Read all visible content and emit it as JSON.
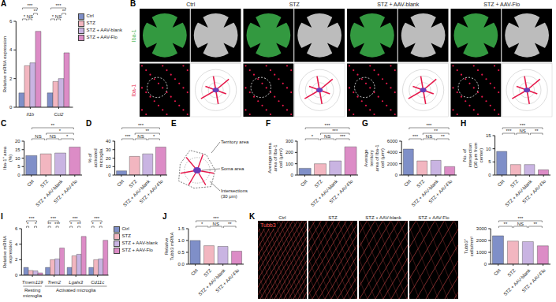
{
  "chart_data": [
    {
      "panel": "A",
      "type": "bar",
      "categories": [
        "Il1b",
        "Ccl2"
      ],
      "y_label": "Relative mRNA expression",
      "ylim": [
        0,
        6
      ],
      "yticks": [
        0,
        2,
        4,
        6
      ],
      "legend": "right",
      "series": [
        {
          "name": "Ctrl",
          "color": "#7f8fc8",
          "values": [
            1.0,
            1.0
          ]
        },
        {
          "name": "STZ",
          "color": "#f2b6c0",
          "values": [
            2.9,
            1.8
          ]
        },
        {
          "name": "STZ + AAV-blank",
          "color": "#c9b4e2",
          "values": [
            3.1,
            2.0
          ]
        },
        {
          "name": "STZ + AAV-Flo",
          "color": "#dc8cc6",
          "values": [
            5.3,
            3.8
          ]
        }
      ],
      "comparisons": [
        {
          "category": 0,
          "from": 0,
          "to": 1,
          "label": "*"
        },
        {
          "category": 0,
          "from": 1,
          "to": 2,
          "label": "NS"
        },
        {
          "category": 0,
          "from": 2,
          "to": 3,
          "label": "**"
        },
        {
          "category": 0,
          "from": 0,
          "to": 3,
          "label": "***"
        },
        {
          "category": 1,
          "from": 0,
          "to": 1,
          "label": "*"
        },
        {
          "category": 1,
          "from": 1,
          "to": 2,
          "label": "NS"
        },
        {
          "category": 1,
          "from": 2,
          "to": 3,
          "label": "**"
        },
        {
          "category": 1,
          "from": 0,
          "to": 3,
          "label": "***"
        }
      ]
    },
    {
      "panel": "C",
      "type": "bar",
      "categories": [
        "Ctrl",
        "STZ",
        "STZ + AAV-blank",
        "STZ + AAV-Flo"
      ],
      "values": [
        11.5,
        12.5,
        13.0,
        16.5
      ],
      "colors": [
        "#7f8fc8",
        "#f2b6c0",
        "#c9b4e2",
        "#dc8cc6"
      ],
      "y_label": "Iba-1⁺ area (%)",
      "ylim": [
        0,
        20
      ],
      "yticks": [
        0,
        5,
        10,
        15,
        20
      ],
      "comparisons": [
        {
          "from": 0,
          "to": 1,
          "label": "NS"
        },
        {
          "from": 1,
          "to": 2,
          "label": "NS"
        },
        {
          "from": 2,
          "to": 3,
          "label": "*"
        },
        {
          "from": 1,
          "to": 3,
          "label": "*"
        },
        {
          "from": 0,
          "to": 3,
          "label": "**"
        }
      ]
    },
    {
      "panel": "D",
      "type": "bar",
      "categories": [
        "Ctrl",
        "STZ",
        "STZ + AAV-blank",
        "STZ + AAV-Flo"
      ],
      "values": [
        5,
        22,
        25,
        33
      ],
      "colors": [
        "#7f8fc8",
        "#f2b6c0",
        "#c9b4e2",
        "#dc8cc6"
      ],
      "y_label": "% of activated microglia",
      "ylim": [
        0,
        40
      ],
      "yticks": [
        0,
        10,
        20,
        30,
        40
      ],
      "comparisons": [
        {
          "from": 0,
          "to": 1,
          "label": "***"
        },
        {
          "from": 1,
          "to": 2,
          "label": "NS"
        },
        {
          "from": 2,
          "to": 3,
          "label": "*"
        },
        {
          "from": 1,
          "to": 3,
          "label": "**"
        },
        {
          "from": 0,
          "to": 3,
          "label": "***"
        }
      ]
    },
    {
      "panel": "F",
      "type": "bar",
      "categories": [
        "Ctrl",
        "STZ",
        "STZ + AAV-blank",
        "STZ + AAV-Flo"
      ],
      "values": [
        60,
        100,
        125,
        250
      ],
      "colors": [
        "#7f8fc8",
        "#f2b6c0",
        "#c9b4e2",
        "#dc8cc6"
      ],
      "y_label": "Average soma area of Iba-1 cell (μm²)",
      "ylim": [
        0,
        300
      ],
      "yticks": [
        0,
        100,
        200,
        300
      ],
      "comparisons": [
        {
          "from": 0,
          "to": 1,
          "label": "*"
        },
        {
          "from": 1,
          "to": 2,
          "label": "NS"
        },
        {
          "from": 2,
          "to": 3,
          "label": "***"
        },
        {
          "from": 1,
          "to": 3,
          "label": "***"
        },
        {
          "from": 0,
          "to": 3,
          "label": "***"
        }
      ]
    },
    {
      "panel": "G",
      "type": "bar",
      "categories": [
        "Ctrl",
        "STZ",
        "STZ + AAV-blank",
        "STZ + AAV-Flo"
      ],
      "values": [
        4600,
        2500,
        2600,
        1500
      ],
      "colors": [
        "#7f8fc8",
        "#f2b6c0",
        "#c9b4e2",
        "#dc8cc6"
      ],
      "y_label": "Average territory area of Iba-1 cell (μm²)",
      "ylim": [
        0,
        6000
      ],
      "yticks": [
        0,
        2000,
        4000,
        6000
      ],
      "comparisons": [
        {
          "from": 0,
          "to": 1,
          "label": "***"
        },
        {
          "from": 1,
          "to": 2,
          "label": "NS"
        },
        {
          "from": 2,
          "to": 3,
          "label": "**"
        },
        {
          "from": 1,
          "to": 3,
          "label": "**"
        },
        {
          "from": 0,
          "to": 3,
          "label": "***"
        }
      ]
    },
    {
      "panel": "H",
      "type": "bar",
      "categories": [
        "Ctrl",
        "STZ",
        "STZ + AAV-blank",
        "STZ + AAV-Flo"
      ],
      "values": [
        9,
        4,
        4,
        2
      ],
      "colors": [
        "#7f8fc8",
        "#f2b6c0",
        "#c9b4e2",
        "#dc8cc6"
      ],
      "y_label": "No. of intersection (30 μm from center)",
      "ylim": [
        0,
        15
      ],
      "yticks": [
        0,
        5,
        10,
        15
      ],
      "comparisons": [
        {
          "from": 0,
          "to": 1,
          "label": "***"
        },
        {
          "from": 1,
          "to": 2,
          "label": "NS"
        },
        {
          "from": 2,
          "to": 3,
          "label": "**"
        },
        {
          "from": 0,
          "to": 3,
          "label": "***"
        }
      ]
    },
    {
      "panel": "I",
      "type": "bar",
      "categories": [
        "Tmem119",
        "Trem2",
        "Lgals3",
        "Cd11c"
      ],
      "y_label": "Relative mRNA expression",
      "ylim": [
        0,
        6
      ],
      "yticks": [
        0,
        2,
        4,
        6
      ],
      "legend": "right",
      "series": [
        {
          "name": "Ctrl",
          "color": "#7f8fc8",
          "values": [
            1.0,
            1.0,
            1.0,
            1.0
          ]
        },
        {
          "name": "STZ",
          "color": "#f2b6c0",
          "values": [
            0.6,
            2.0,
            2.5,
            2.0
          ]
        },
        {
          "name": "STZ + AAV-blank",
          "color": "#c9b4e2",
          "values": [
            0.55,
            2.1,
            2.7,
            2.1
          ]
        },
        {
          "name": "STZ + AAV-Flo",
          "color": "#dc8cc6",
          "values": [
            0.3,
            3.5,
            5.0,
            4.5
          ]
        }
      ],
      "groups": [
        {
          "label": "Resting microglia",
          "from": 0,
          "to": 0
        },
        {
          "label": "Activated microglia",
          "from": 1,
          "to": 3
        }
      ],
      "comparisons": [
        {
          "category": 0,
          "from": 0,
          "to": 1,
          "label": "*"
        },
        {
          "category": 0,
          "from": 2,
          "to": 3,
          "label": "*"
        },
        {
          "category": 0,
          "from": 0,
          "to": 3,
          "label": "***"
        },
        {
          "category": 1,
          "from": 0,
          "to": 1,
          "label": "**"
        },
        {
          "category": 1,
          "from": 2,
          "to": 3,
          "label": "***"
        },
        {
          "category": 1,
          "from": 0,
          "to": 3,
          "label": "***"
        },
        {
          "category": 2,
          "from": 0,
          "to": 1,
          "label": "*"
        },
        {
          "category": 2,
          "from": 2,
          "to": 3,
          "label": "**"
        },
        {
          "category": 2,
          "from": 0,
          "to": 3,
          "label": "***"
        },
        {
          "category": 3,
          "from": 0,
          "to": 1,
          "label": "*"
        },
        {
          "category": 3,
          "from": 2,
          "to": 3,
          "label": "*"
        },
        {
          "category": 3,
          "from": 0,
          "to": 3,
          "label": "***"
        }
      ]
    },
    {
      "panel": "J",
      "type": "bar",
      "categories": [
        "Ctrl",
        "STZ",
        "STZ + AAV-blank",
        "STZ + AAV-Flo"
      ],
      "values": [
        1.0,
        0.78,
        0.75,
        0.55
      ],
      "colors": [
        "#7f8fc8",
        "#f2b6c0",
        "#c9b4e2",
        "#dc8cc6"
      ],
      "y_label": "Relative Tubb3 mRNA",
      "ylim": [
        0,
        1.5
      ],
      "yticks": [
        {
          "value": 0,
          "label": "0.0"
        },
        0.5,
        {
          "value": 1,
          "label": "1.0"
        },
        1.5
      ],
      "comparisons": [
        {
          "from": 0,
          "to": 1,
          "label": "*"
        },
        {
          "from": 1,
          "to": 2,
          "label": "NS"
        },
        {
          "from": 2,
          "to": 3,
          "label": "**"
        },
        {
          "from": 0,
          "to": 3,
          "label": "***"
        }
      ]
    },
    {
      "type": "bar",
      "categories": [
        "Ctrl",
        "STZ",
        "STZ + AAV-blank",
        "STZ + AAV-Flo"
      ],
      "values": [
        2400,
        1950,
        1900,
        1550
      ],
      "colors": [
        "#7f8fc8",
        "#f2b6c0",
        "#c9b4e2",
        "#dc8cc6"
      ],
      "y_label": "Tubb3⁺ cells/mm²",
      "ylim": [
        0,
        3000
      ],
      "yticks": [
        0,
        1000,
        2000,
        3000
      ],
      "comparisons": [
        {
          "from": 0,
          "to": 1,
          "label": "**"
        },
        {
          "from": 1,
          "to": 2,
          "label": "NS"
        },
        {
          "from": 2,
          "to": 3,
          "label": "**"
        },
        {
          "from": 0,
          "to": 3,
          "label": "***"
        }
      ]
    }
  ],
  "images": [
    {
      "panel": "B",
      "columns": [
        "Ctrl",
        "STZ",
        "STZ + AAV-blank",
        "STZ + AAV-Flo"
      ],
      "rows": [
        {
          "label": "Iba-1",
          "color": "#3cb44b"
        },
        {
          "label": "Iba-1",
          "color": "#e6194b"
        }
      ]
    },
    {
      "panel": "K",
      "columns": [
        "Ctrl",
        "STZ",
        "STZ + AAV-blank",
        "STZ + AAV-Flo"
      ],
      "label": "Tubb3",
      "color": "#ff5a5a"
    }
  ],
  "diagram": {
    "panel": "E",
    "labels": [
      "Territory area",
      "Soma area",
      "Intersections (30 μm)"
    ]
  }
}
